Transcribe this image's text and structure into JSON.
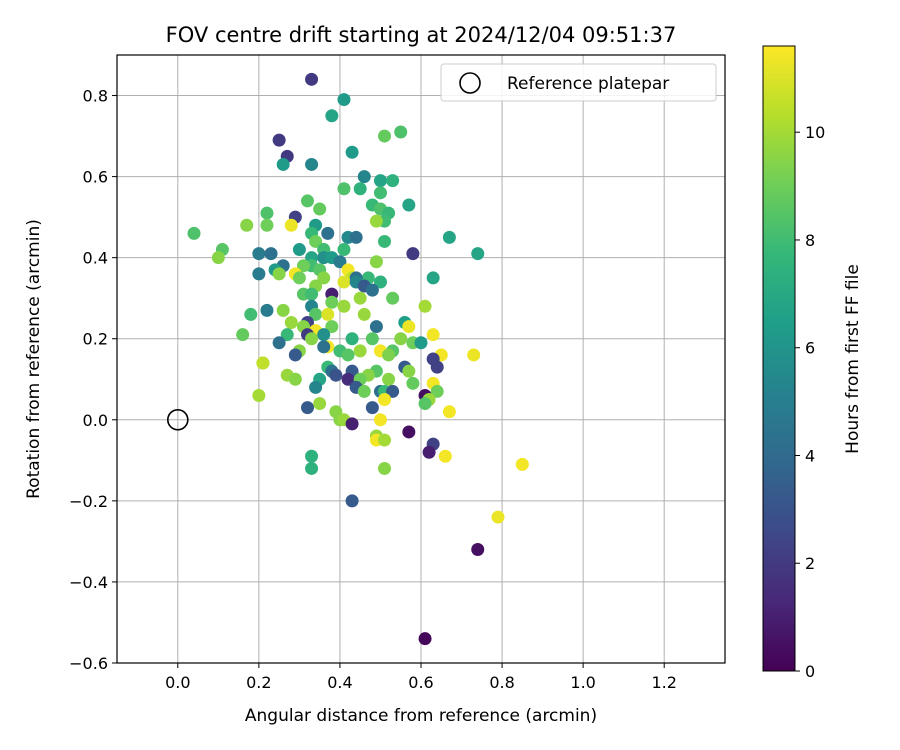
{
  "chart_data": {
    "type": "scatter",
    "title": "FOV centre drift starting at 2024/12/04 09:51:37",
    "xlabel": "Angular distance from reference (arcmin)",
    "ylabel": "Rotation from reference (arcmin)",
    "xlim": [
      -0.15,
      1.35
    ],
    "ylim": [
      -0.6,
      0.9
    ],
    "xticks": [
      0.0,
      0.2,
      0.4,
      0.6,
      0.8,
      1.0,
      1.2
    ],
    "xtick_labels": [
      "0.0",
      "0.2",
      "0.4",
      "0.6",
      "0.8",
      "1.0",
      "1.2"
    ],
    "yticks": [
      -0.6,
      -0.4,
      -0.2,
      0.0,
      0.2,
      0.4,
      0.6,
      0.8
    ],
    "ytick_labels": [
      "−0.6",
      "−0.4",
      "−0.2",
      "0.0",
      "0.2",
      "0.4",
      "0.6",
      "0.8"
    ],
    "grid": true,
    "legend": {
      "position": "top-right",
      "entries": [
        {
          "label": "Reference platepar",
          "marker": "open-circle"
        }
      ]
    },
    "reference_point": {
      "x": 0.0,
      "y": 0.0
    },
    "colorbar": {
      "label": "Hours from first FF file",
      "colormap": "viridis",
      "range": [
        0,
        11.6
      ],
      "ticks": [
        0,
        2,
        4,
        6,
        8,
        10
      ],
      "tick_labels": [
        "0",
        "2",
        "4",
        "6",
        "8",
        "10"
      ],
      "colors": [
        "#440154",
        "#482878",
        "#3e4989",
        "#31688e",
        "#26828e",
        "#1f9e89",
        "#35b779",
        "#6ece58",
        "#b5de2b",
        "#fde725"
      ]
    },
    "points": [
      [
        0.33,
        0.84,
        2.0
      ],
      [
        0.41,
        0.79,
        6.3
      ],
      [
        0.38,
        0.75,
        6.8
      ],
      [
        0.55,
        0.71,
        8.3
      ],
      [
        0.51,
        0.7,
        8.8
      ],
      [
        0.25,
        0.69,
        2.0
      ],
      [
        0.27,
        0.65,
        2.0
      ],
      [
        0.43,
        0.66,
        6.3
      ],
      [
        0.33,
        0.63,
        5.3
      ],
      [
        0.26,
        0.63,
        6.3
      ],
      [
        0.46,
        0.6,
        5.3
      ],
      [
        0.5,
        0.59,
        6.8
      ],
      [
        0.53,
        0.59,
        7.4
      ],
      [
        0.41,
        0.57,
        8.3
      ],
      [
        0.45,
        0.57,
        7.4
      ],
      [
        0.5,
        0.56,
        8.0
      ],
      [
        0.57,
        0.53,
        6.8
      ],
      [
        0.32,
        0.54,
        8.5
      ],
      [
        0.48,
        0.53,
        7.8
      ],
      [
        0.5,
        0.52,
        8.3
      ],
      [
        0.52,
        0.51,
        7.8
      ],
      [
        0.35,
        0.52,
        8.8
      ],
      [
        0.29,
        0.5,
        2.3
      ],
      [
        0.22,
        0.51,
        8.3
      ],
      [
        0.51,
        0.49,
        8.0
      ],
      [
        0.49,
        0.49,
        9.8
      ],
      [
        0.28,
        0.48,
        11.3
      ],
      [
        0.34,
        0.48,
        6.3
      ],
      [
        0.17,
        0.48,
        9.5
      ],
      [
        0.22,
        0.48,
        9.0
      ],
      [
        0.33,
        0.46,
        7.8
      ],
      [
        0.37,
        0.46,
        4.3
      ],
      [
        0.04,
        0.46,
        8.3
      ],
      [
        0.42,
        0.45,
        5.5
      ],
      [
        0.44,
        0.45,
        4.3
      ],
      [
        0.34,
        0.44,
        9.0
      ],
      [
        0.51,
        0.44,
        7.8
      ],
      [
        0.67,
        0.45,
        6.8
      ],
      [
        0.36,
        0.42,
        9.5
      ],
      [
        0.41,
        0.42,
        7.8
      ],
      [
        0.3,
        0.42,
        6.3
      ],
      [
        0.36,
        0.42,
        8.0
      ],
      [
        0.11,
        0.42,
        8.5
      ],
      [
        0.2,
        0.41,
        4.8
      ],
      [
        0.23,
        0.41,
        4.3
      ],
      [
        0.58,
        0.41,
        2.0
      ],
      [
        0.74,
        0.41,
        6.8
      ],
      [
        0.1,
        0.4,
        9.5
      ],
      [
        0.33,
        0.4,
        6.8
      ],
      [
        0.36,
        0.4,
        5.8
      ],
      [
        0.38,
        0.4,
        6.3
      ],
      [
        0.4,
        0.39,
        4.8
      ],
      [
        0.49,
        0.39,
        9.5
      ],
      [
        0.33,
        0.38,
        8.0
      ],
      [
        0.26,
        0.38,
        4.3
      ],
      [
        0.31,
        0.38,
        9.0
      ],
      [
        0.35,
        0.37,
        8.5
      ],
      [
        0.42,
        0.37,
        11.4
      ],
      [
        0.2,
        0.36,
        4.8
      ],
      [
        0.24,
        0.37,
        6.3
      ],
      [
        0.25,
        0.36,
        9.5
      ],
      [
        0.29,
        0.36,
        11.4
      ],
      [
        0.43,
        0.35,
        10.5
      ],
      [
        0.47,
        0.35,
        7.8
      ],
      [
        0.3,
        0.35,
        9.0
      ],
      [
        0.36,
        0.35,
        9.5
      ],
      [
        0.44,
        0.35,
        4.3
      ],
      [
        0.63,
        0.35,
        6.8
      ],
      [
        0.41,
        0.34,
        11.0
      ],
      [
        0.44,
        0.34,
        5.3
      ],
      [
        0.5,
        0.34,
        7.4
      ],
      [
        0.34,
        0.33,
        9.5
      ],
      [
        0.46,
        0.33,
        3.3
      ],
      [
        0.48,
        0.32,
        4.3
      ],
      [
        0.38,
        0.31,
        1.0
      ],
      [
        0.31,
        0.31,
        8.5
      ],
      [
        0.33,
        0.31,
        8.0
      ],
      [
        0.45,
        0.3,
        9.8
      ],
      [
        0.53,
        0.3,
        8.8
      ],
      [
        0.38,
        0.29,
        9.0
      ],
      [
        0.33,
        0.28,
        5.3
      ],
      [
        0.41,
        0.28,
        9.8
      ],
      [
        0.61,
        0.28,
        10.0
      ],
      [
        0.22,
        0.27,
        4.8
      ],
      [
        0.26,
        0.27,
        9.5
      ],
      [
        0.18,
        0.26,
        8.0
      ],
      [
        0.34,
        0.26,
        8.5
      ],
      [
        0.37,
        0.26,
        11.0
      ],
      [
        0.46,
        0.26,
        9.8
      ],
      [
        0.56,
        0.24,
        6.5
      ],
      [
        0.32,
        0.24,
        2.3
      ],
      [
        0.28,
        0.24,
        9.8
      ],
      [
        0.31,
        0.23,
        9.5
      ],
      [
        0.38,
        0.23,
        9.0
      ],
      [
        0.49,
        0.23,
        4.3
      ],
      [
        0.57,
        0.23,
        11.3
      ],
      [
        0.34,
        0.22,
        11.4
      ],
      [
        0.32,
        0.21,
        2.0
      ],
      [
        0.27,
        0.21,
        7.8
      ],
      [
        0.36,
        0.21,
        5.8
      ],
      [
        0.63,
        0.21,
        11.4
      ],
      [
        0.16,
        0.21,
        8.8
      ],
      [
        0.33,
        0.2,
        9.5
      ],
      [
        0.43,
        0.2,
        7.4
      ],
      [
        0.48,
        0.2,
        8.5
      ],
      [
        0.55,
        0.2,
        9.5
      ],
      [
        0.58,
        0.19,
        9.0
      ],
      [
        0.25,
        0.19,
        4.3
      ],
      [
        0.6,
        0.19,
        6.3
      ],
      [
        0.37,
        0.18,
        11.4
      ],
      [
        0.36,
        0.18,
        4.3
      ],
      [
        0.53,
        0.17,
        8.5
      ],
      [
        0.3,
        0.17,
        9.5
      ],
      [
        0.4,
        0.17,
        8.0
      ],
      [
        0.45,
        0.17,
        9.8
      ],
      [
        0.29,
        0.16,
        3.3
      ],
      [
        0.42,
        0.16,
        8.5
      ],
      [
        0.5,
        0.17,
        11.4
      ],
      [
        0.52,
        0.16,
        9.3
      ],
      [
        0.65,
        0.16,
        11.4
      ],
      [
        0.73,
        0.16,
        11.3
      ],
      [
        0.63,
        0.15,
        2.3
      ],
      [
        0.21,
        0.14,
        9.8
      ],
      [
        0.21,
        0.14,
        10.5
      ],
      [
        0.37,
        0.13,
        7.8
      ],
      [
        0.38,
        0.12,
        4.3
      ],
      [
        0.43,
        0.12,
        3.3
      ],
      [
        0.49,
        0.12,
        8.5
      ],
      [
        0.56,
        0.13,
        3.3
      ],
      [
        0.64,
        0.13,
        2.3
      ],
      [
        0.39,
        0.11,
        3.0
      ],
      [
        0.47,
        0.11,
        9.5
      ],
      [
        0.57,
        0.12,
        9.5
      ],
      [
        0.27,
        0.11,
        9.8
      ],
      [
        0.29,
        0.1,
        9.5
      ],
      [
        0.35,
        0.1,
        6.8
      ],
      [
        0.42,
        0.1,
        1.5
      ],
      [
        0.45,
        0.1,
        9.0
      ],
      [
        0.52,
        0.1,
        9.5
      ],
      [
        0.58,
        0.09,
        8.8
      ],
      [
        0.63,
        0.09,
        11.4
      ],
      [
        0.34,
        0.08,
        5.3
      ],
      [
        0.44,
        0.08,
        3.3
      ],
      [
        0.46,
        0.07,
        9.0
      ],
      [
        0.5,
        0.07,
        4.3
      ],
      [
        0.51,
        0.07,
        7.8
      ],
      [
        0.53,
        0.07,
        3.3
      ],
      [
        0.64,
        0.07,
        9.0
      ],
      [
        0.61,
        0.06,
        0.5
      ],
      [
        0.62,
        0.05,
        9.8
      ],
      [
        0.2,
        0.06,
        10.0
      ],
      [
        0.51,
        0.05,
        11.4
      ],
      [
        0.35,
        0.04,
        9.8
      ],
      [
        0.48,
        0.03,
        3.3
      ],
      [
        0.61,
        0.04,
        8.5
      ],
      [
        0.32,
        0.03,
        3.3
      ],
      [
        0.39,
        0.02,
        9.5
      ],
      [
        0.67,
        0.02,
        11.4
      ],
      [
        0.4,
        0.0,
        9.5
      ],
      [
        0.41,
        0.0,
        9.8
      ],
      [
        0.5,
        0.0,
        11.4
      ],
      [
        0.43,
        -0.01,
        1.0
      ],
      [
        0.57,
        -0.03,
        0.5
      ],
      [
        0.49,
        -0.04,
        9.8
      ],
      [
        0.49,
        -0.05,
        11.4
      ],
      [
        0.51,
        -0.05,
        10.0
      ],
      [
        0.63,
        -0.06,
        2.3
      ],
      [
        0.62,
        -0.08,
        1.0
      ],
      [
        0.66,
        -0.09,
        11.4
      ],
      [
        0.33,
        -0.09,
        7.4
      ],
      [
        0.33,
        -0.12,
        7.4
      ],
      [
        0.51,
        -0.12,
        9.5
      ],
      [
        0.85,
        -0.11,
        11.4
      ],
      [
        0.43,
        -0.2,
        3.3
      ],
      [
        0.79,
        -0.24,
        11.3
      ],
      [
        0.74,
        -0.32,
        0.5
      ],
      [
        0.61,
        -0.54,
        0.2
      ]
    ]
  }
}
